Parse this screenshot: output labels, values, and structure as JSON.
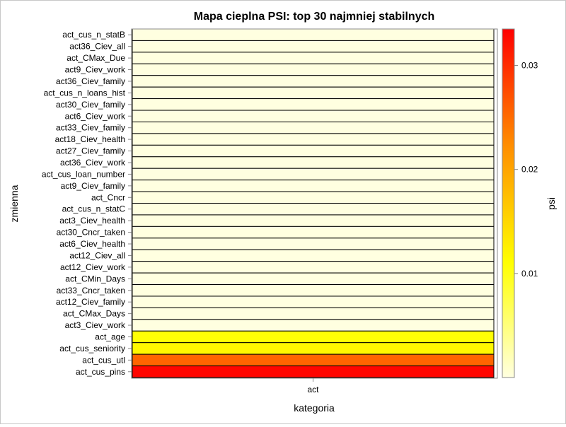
{
  "chart_data": {
    "type": "heatmap",
    "title": "Mapa cieplna PSI: top 30 najmniej stabilnych",
    "xlabel": "kategoria",
    "ylabel": "zmienna",
    "x_categories": [
      "act"
    ],
    "y_categories": [
      "act_cus_n_statB",
      "act36_Ciev_all",
      "act_CMax_Due",
      "act9_Ciev_work",
      "act36_Ciev_family",
      "act_cus_n_loans_hist",
      "act30_Ciev_family",
      "act6_Ciev_work",
      "act33_Ciev_family",
      "act18_Ciev_health",
      "act27_Ciev_family",
      "act36_Ciev_work",
      "act_cus_loan_number",
      "act9_Ciev_family",
      "act_Cncr",
      "act_cus_n_statC",
      "act3_Ciev_health",
      "act30_Cncr_taken",
      "act6_Ciev_health",
      "act12_Ciev_all",
      "act12_Ciev_work",
      "act_CMin_Days",
      "act33_Cncr_taken",
      "act12_Ciev_family",
      "act_CMax_Days",
      "act3_Ciev_work",
      "act_age",
      "act_cus_seniority",
      "act_cus_utl",
      "act_cus_pins"
    ],
    "values": [
      0.0,
      0.0,
      0.0,
      0.0,
      0.0,
      0.0,
      0.0,
      0.0,
      0.0,
      0.0,
      0.0,
      0.0,
      0.0,
      0.0,
      0.0,
      0.0,
      0.0,
      0.0,
      0.0,
      0.0,
      0.0,
      0.0,
      0.0,
      0.0,
      0.0,
      0.0,
      0.0109,
      0.0119,
      0.0255,
      0.0331
    ],
    "colorbar": {
      "label": "psi",
      "min": 0.0,
      "max": 0.0335,
      "ticks": [
        0.01,
        0.02,
        0.03
      ],
      "tick_labels": [
        "0.01",
        "0.02",
        "0.03"
      ],
      "colormap": [
        "#ffffe0",
        "#ffff00",
        "#ff8c00",
        "#ff0000"
      ]
    },
    "legend": "right"
  }
}
